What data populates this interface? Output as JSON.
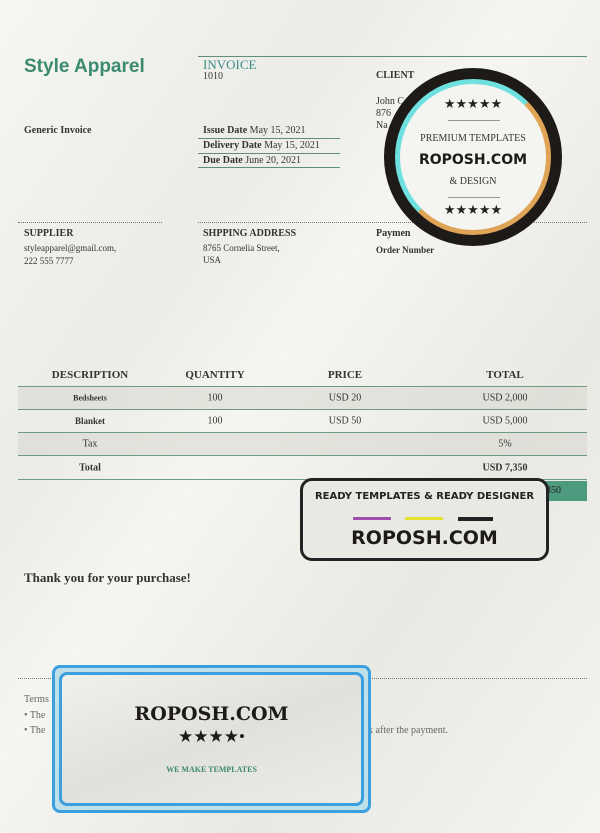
{
  "company": {
    "name": "Style Apparel",
    "subtitle": "Generic Invoice"
  },
  "invoice": {
    "label": "INVOICE",
    "number": "1010"
  },
  "dates": [
    {
      "label": "Issue Date",
      "value": "May 15, 2021"
    },
    {
      "label": "Delivery Date",
      "value": "May 15, 2021"
    },
    {
      "label": "Due Date",
      "value": "June 20, 2021"
    }
  ],
  "client": {
    "label": "CLIENT",
    "lines": [
      "John C",
      "876",
      "Na"
    ]
  },
  "supplier": {
    "label": "SUPPLIER",
    "email": "styleapparel@gmail.com,",
    "phone": "222 555 7777"
  },
  "shipping": {
    "label": "SHPPING ADDRESS",
    "line1": "8765 Cornelia Street,",
    "line2": "USA"
  },
  "payment": {
    "label": "Paymen",
    "order_label": "Order Number"
  },
  "table": {
    "headers": [
      "DESCRIPTION",
      "QUANTITY",
      "PRICE",
      "TOTAL"
    ],
    "rows": [
      [
        "Bedsheets",
        "100",
        "USD 20",
        "USD 2,000"
      ],
      [
        "Blanket",
        "100",
        "USD 50",
        "USD 5,000"
      ],
      [
        "Tax",
        "",
        "",
        "5%"
      ],
      [
        "Total",
        "",
        "",
        "USD 7,350"
      ]
    ],
    "balance_partial": "350"
  },
  "thank_you": "Thank you for your purchase!",
  "terms": {
    "label": "Terms",
    "bullet1": "The",
    "bullet2": "The",
    "bullet2_tail": "k after the payment."
  },
  "watermarks": {
    "stamp": {
      "stars": "★★★★★",
      "line1": "PREMIUM TEMPLATES",
      "brand": "ROPOSH.COM",
      "line2": "& DESIGN"
    },
    "ready": {
      "line1": "READY TEMPLATES & READY DESIGNER",
      "brand": "ROPOSH.COM"
    },
    "blue": {
      "brand": "ROPOSH.COM",
      "stars": "★★★★•",
      "tagline": "WE MAKE TEMPLATES"
    }
  },
  "colors": {
    "brand_green": "#3c8a70",
    "line_green": "#5f8f7c",
    "balance_cell": "#4e9a7e",
    "stamp_cyan": "#6fe0e0",
    "stamp_orange": "#e0a457",
    "blue_frame": "#3aa0e0"
  }
}
